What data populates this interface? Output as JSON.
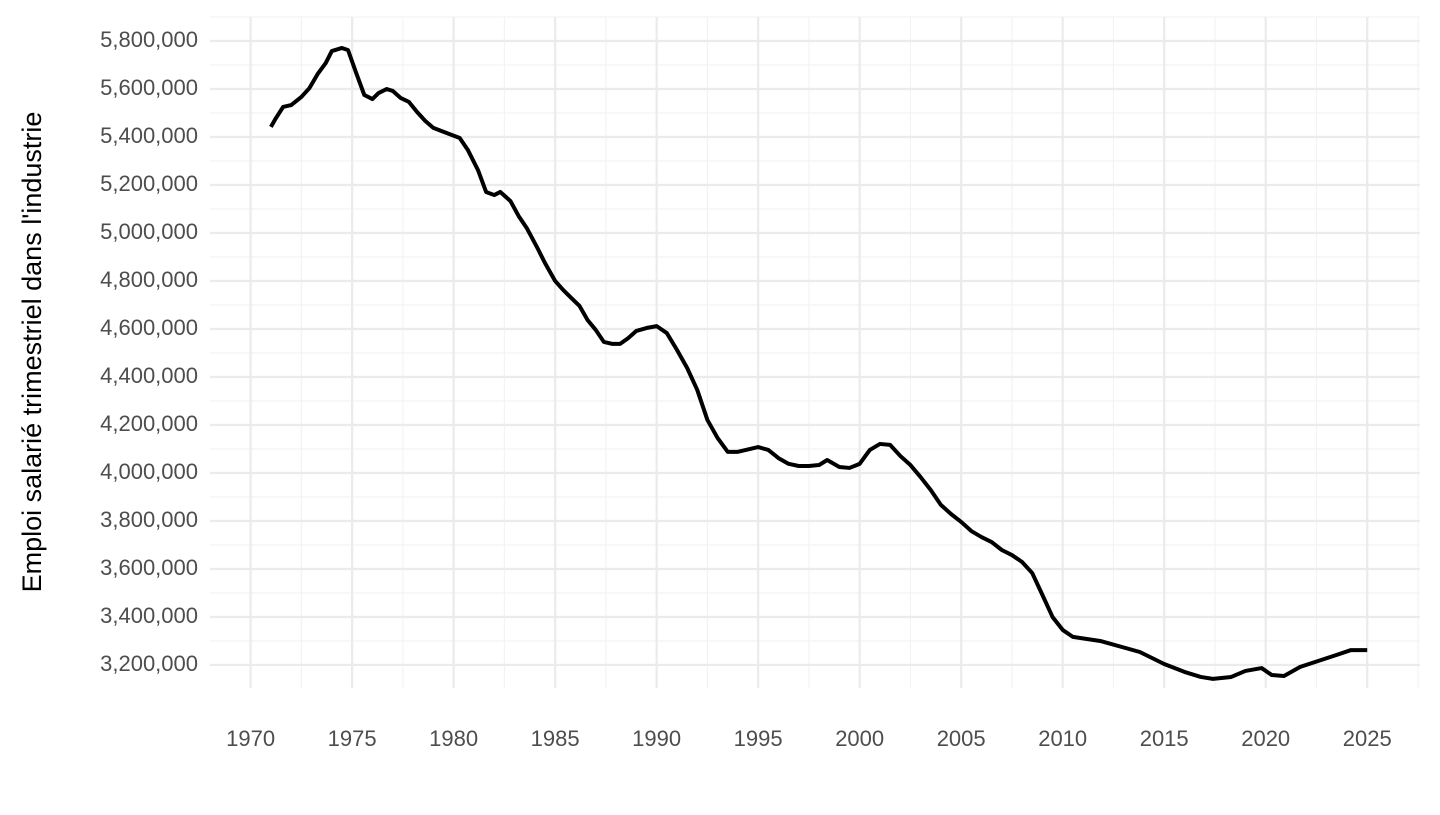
{
  "chart_data": {
    "type": "line",
    "y_label": "Emploi salarié trimestriel dans l'industrie",
    "color": "#000000",
    "grid": true,
    "x": [
      1971.0,
      1971.25,
      1971.6,
      1972.0,
      1972.5,
      1972.9,
      1973.3,
      1973.7,
      1974.0,
      1974.5,
      1974.8,
      1975.2,
      1975.6,
      1976.0,
      1976.3,
      1976.7,
      1977.0,
      1977.4,
      1977.8,
      1978.2,
      1978.6,
      1979.0,
      1979.4,
      1979.8,
      1980.3,
      1980.7,
      1981.2,
      1981.6,
      1982.0,
      1982.3,
      1982.8,
      1983.2,
      1983.6,
      1984.1,
      1984.5,
      1985.0,
      1985.4,
      1985.8,
      1986.2,
      1986.6,
      1987.0,
      1987.4,
      1987.8,
      1988.2,
      1988.6,
      1989.0,
      1989.5,
      1990.0,
      1990.5,
      1991.0,
      1991.5,
      1992.0,
      1992.5,
      1993.0,
      1993.5,
      1994.0,
      1995.0,
      1995.5,
      1996.0,
      1996.5,
      1997.0,
      1997.5,
      1998.0,
      1998.4,
      1999.0,
      1999.5,
      2000.0,
      2000.5,
      2001.0,
      2001.5,
      2002.0,
      2002.5,
      2003.0,
      2003.5,
      2004.0,
      2004.5,
      2005.0,
      2005.5,
      2006.0,
      2006.5,
      2007.0,
      2007.5,
      2008.0,
      2008.5,
      2009.0,
      2009.5,
      2010.0,
      2010.5,
      2011.85,
      2013.8,
      2015.0,
      2016.0,
      2016.8,
      2017.4,
      2018.3,
      2019.0,
      2019.8,
      2020.3,
      2020.9,
      2021.7,
      2022.6,
      2023.5,
      2024.2,
      2025.0
    ],
    "values": [
      5442000,
      5479000,
      5525000,
      5533000,
      5567000,
      5604000,
      5662000,
      5708000,
      5758000,
      5771000,
      5762000,
      5667000,
      5575000,
      5558000,
      5583000,
      5600000,
      5592000,
      5562000,
      5546000,
      5504000,
      5467000,
      5438000,
      5425000,
      5412000,
      5396000,
      5346000,
      5262000,
      5171000,
      5158000,
      5171000,
      5133000,
      5071000,
      5021000,
      4942000,
      4875000,
      4800000,
      4762000,
      4729000,
      4696000,
      4637000,
      4596000,
      4546000,
      4538000,
      4538000,
      4562000,
      4592000,
      4604000,
      4612000,
      4583000,
      4513000,
      4438000,
      4346000,
      4221000,
      4146000,
      4088000,
      4088000,
      4108000,
      4096000,
      4062000,
      4038000,
      4029000,
      4029000,
      4033000,
      4054000,
      4025000,
      4021000,
      4038000,
      4096000,
      4121000,
      4117000,
      4071000,
      4033000,
      3983000,
      3929000,
      3867000,
      3829000,
      3796000,
      3758000,
      3733000,
      3712000,
      3679000,
      3658000,
      3629000,
      3583000,
      3492000,
      3400000,
      3346000,
      3317000,
      3300000,
      3254000,
      3204000,
      3171000,
      3150000,
      3142000,
      3150000,
      3175000,
      3187000,
      3158000,
      3154000,
      3192000,
      3217000,
      3242000,
      3262000,
      3262000
    ],
    "xlim": [
      1968,
      2027.6
    ],
    "ylim": [
      3104000,
      5900000
    ],
    "xticks": [
      1970,
      1975,
      1980,
      1985,
      1990,
      1995,
      2000,
      2005,
      2010,
      2015,
      2020,
      2025
    ],
    "yticks": [
      {
        "value": 3200000,
        "label": "3,200,000"
      },
      {
        "value": 3400000,
        "label": "3,400,000"
      },
      {
        "value": 3600000,
        "label": "3,600,000"
      },
      {
        "value": 3800000,
        "label": "3,800,000"
      },
      {
        "value": 4000000,
        "label": "4,000,000"
      },
      {
        "value": 4200000,
        "label": "4,200,000"
      },
      {
        "value": 4400000,
        "label": "4,400,000"
      },
      {
        "value": 4600000,
        "label": "4,600,000"
      },
      {
        "value": 4800000,
        "label": "4,800,000"
      },
      {
        "value": 5000000,
        "label": "5,000,000"
      },
      {
        "value": 5200000,
        "label": "5,200,000"
      },
      {
        "value": 5400000,
        "label": "5,400,000"
      },
      {
        "value": 5600000,
        "label": "5,600,000"
      },
      {
        "value": 5800000,
        "label": "5,800,000"
      }
    ]
  }
}
